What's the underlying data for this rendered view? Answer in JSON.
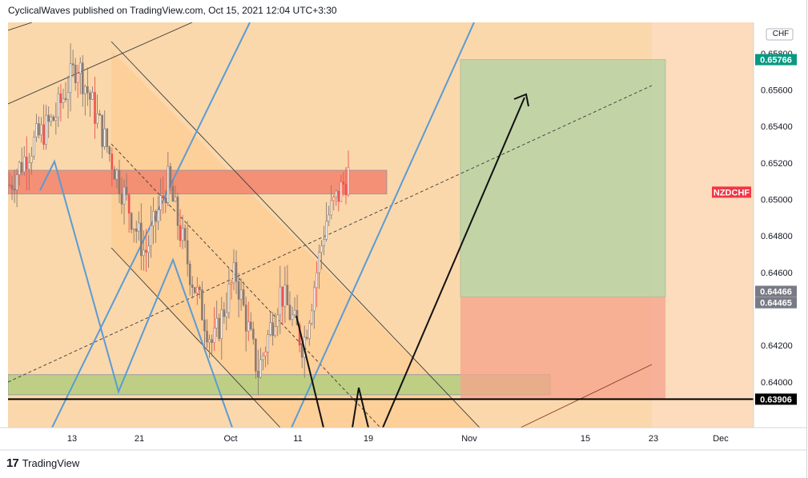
{
  "header": {
    "text": "CyclicalWaves published on TradingView.com, Oct 15, 2021 12:04 UTC+3:30"
  },
  "footer": {
    "logo": "17",
    "brand": "TradingView"
  },
  "colors": {
    "background": "#fcdcbc",
    "band": "#fad7a8",
    "channel_fill": "#ffc88a",
    "resistance_zone": "#f2846d",
    "support_zone": "#b8cf81",
    "target_zone": "#bcd4a6",
    "stop_zone": "#f5a38c",
    "candle": "#8a7a74",
    "candle_accent": "#ef5350",
    "blue_line": "#5b9bd5",
    "price_tag": "#f23645",
    "target_tag": "#089981",
    "entry_tag": "#787b86",
    "support_tag": "#000000"
  },
  "chart_data": {
    "type": "candlestick",
    "symbol": "NZDCHF",
    "currency": "CHF",
    "y_ticks": [
      0.658,
      0.656,
      0.654,
      0.652,
      0.65,
      0.648,
      0.646,
      0.644,
      0.642,
      0.64
    ],
    "y_tick_labels": [
      "0.65800",
      "0.65600",
      "0.65400",
      "0.65200",
      "0.65000",
      "0.64800",
      "0.64600",
      "",
      "0.64200",
      "0.64000"
    ],
    "x_tick_labels": [
      "13",
      "21",
      "Oct",
      "11",
      "19",
      "Nov",
      "15",
      "23",
      "Dec"
    ],
    "price_labels": [
      {
        "text": "0.65766",
        "value": 0.65766,
        "kind": "target"
      },
      {
        "text": "NZDCHF",
        "value": 0.6504,
        "kind": "symbol"
      },
      {
        "text": "0.64466",
        "value": 0.64466,
        "kind": "entry"
      },
      {
        "text": "0.64465",
        "value": 0.64465,
        "kind": "entry"
      },
      {
        "text": "0.63906",
        "value": 0.63906,
        "kind": "support"
      }
    ],
    "ylim": [
      0.6375,
      0.6597
    ],
    "position": {
      "type": "long",
      "target": 0.65766,
      "entry": 0.64466,
      "stop": 0.63906
    },
    "zones": {
      "resistance": [
        0.6503,
        0.6516
      ],
      "support": [
        0.6393,
        0.6404
      ]
    },
    "support_line": 0.63906,
    "ohlc_profile": {
      "start": 0.6508,
      "waypoints": [
        0.6508,
        0.653,
        0.6545,
        0.6575,
        0.654,
        0.6505,
        0.647,
        0.651,
        0.646,
        0.642,
        0.646,
        0.6405,
        0.645,
        0.642,
        0.6488,
        0.6514
      ]
    }
  }
}
